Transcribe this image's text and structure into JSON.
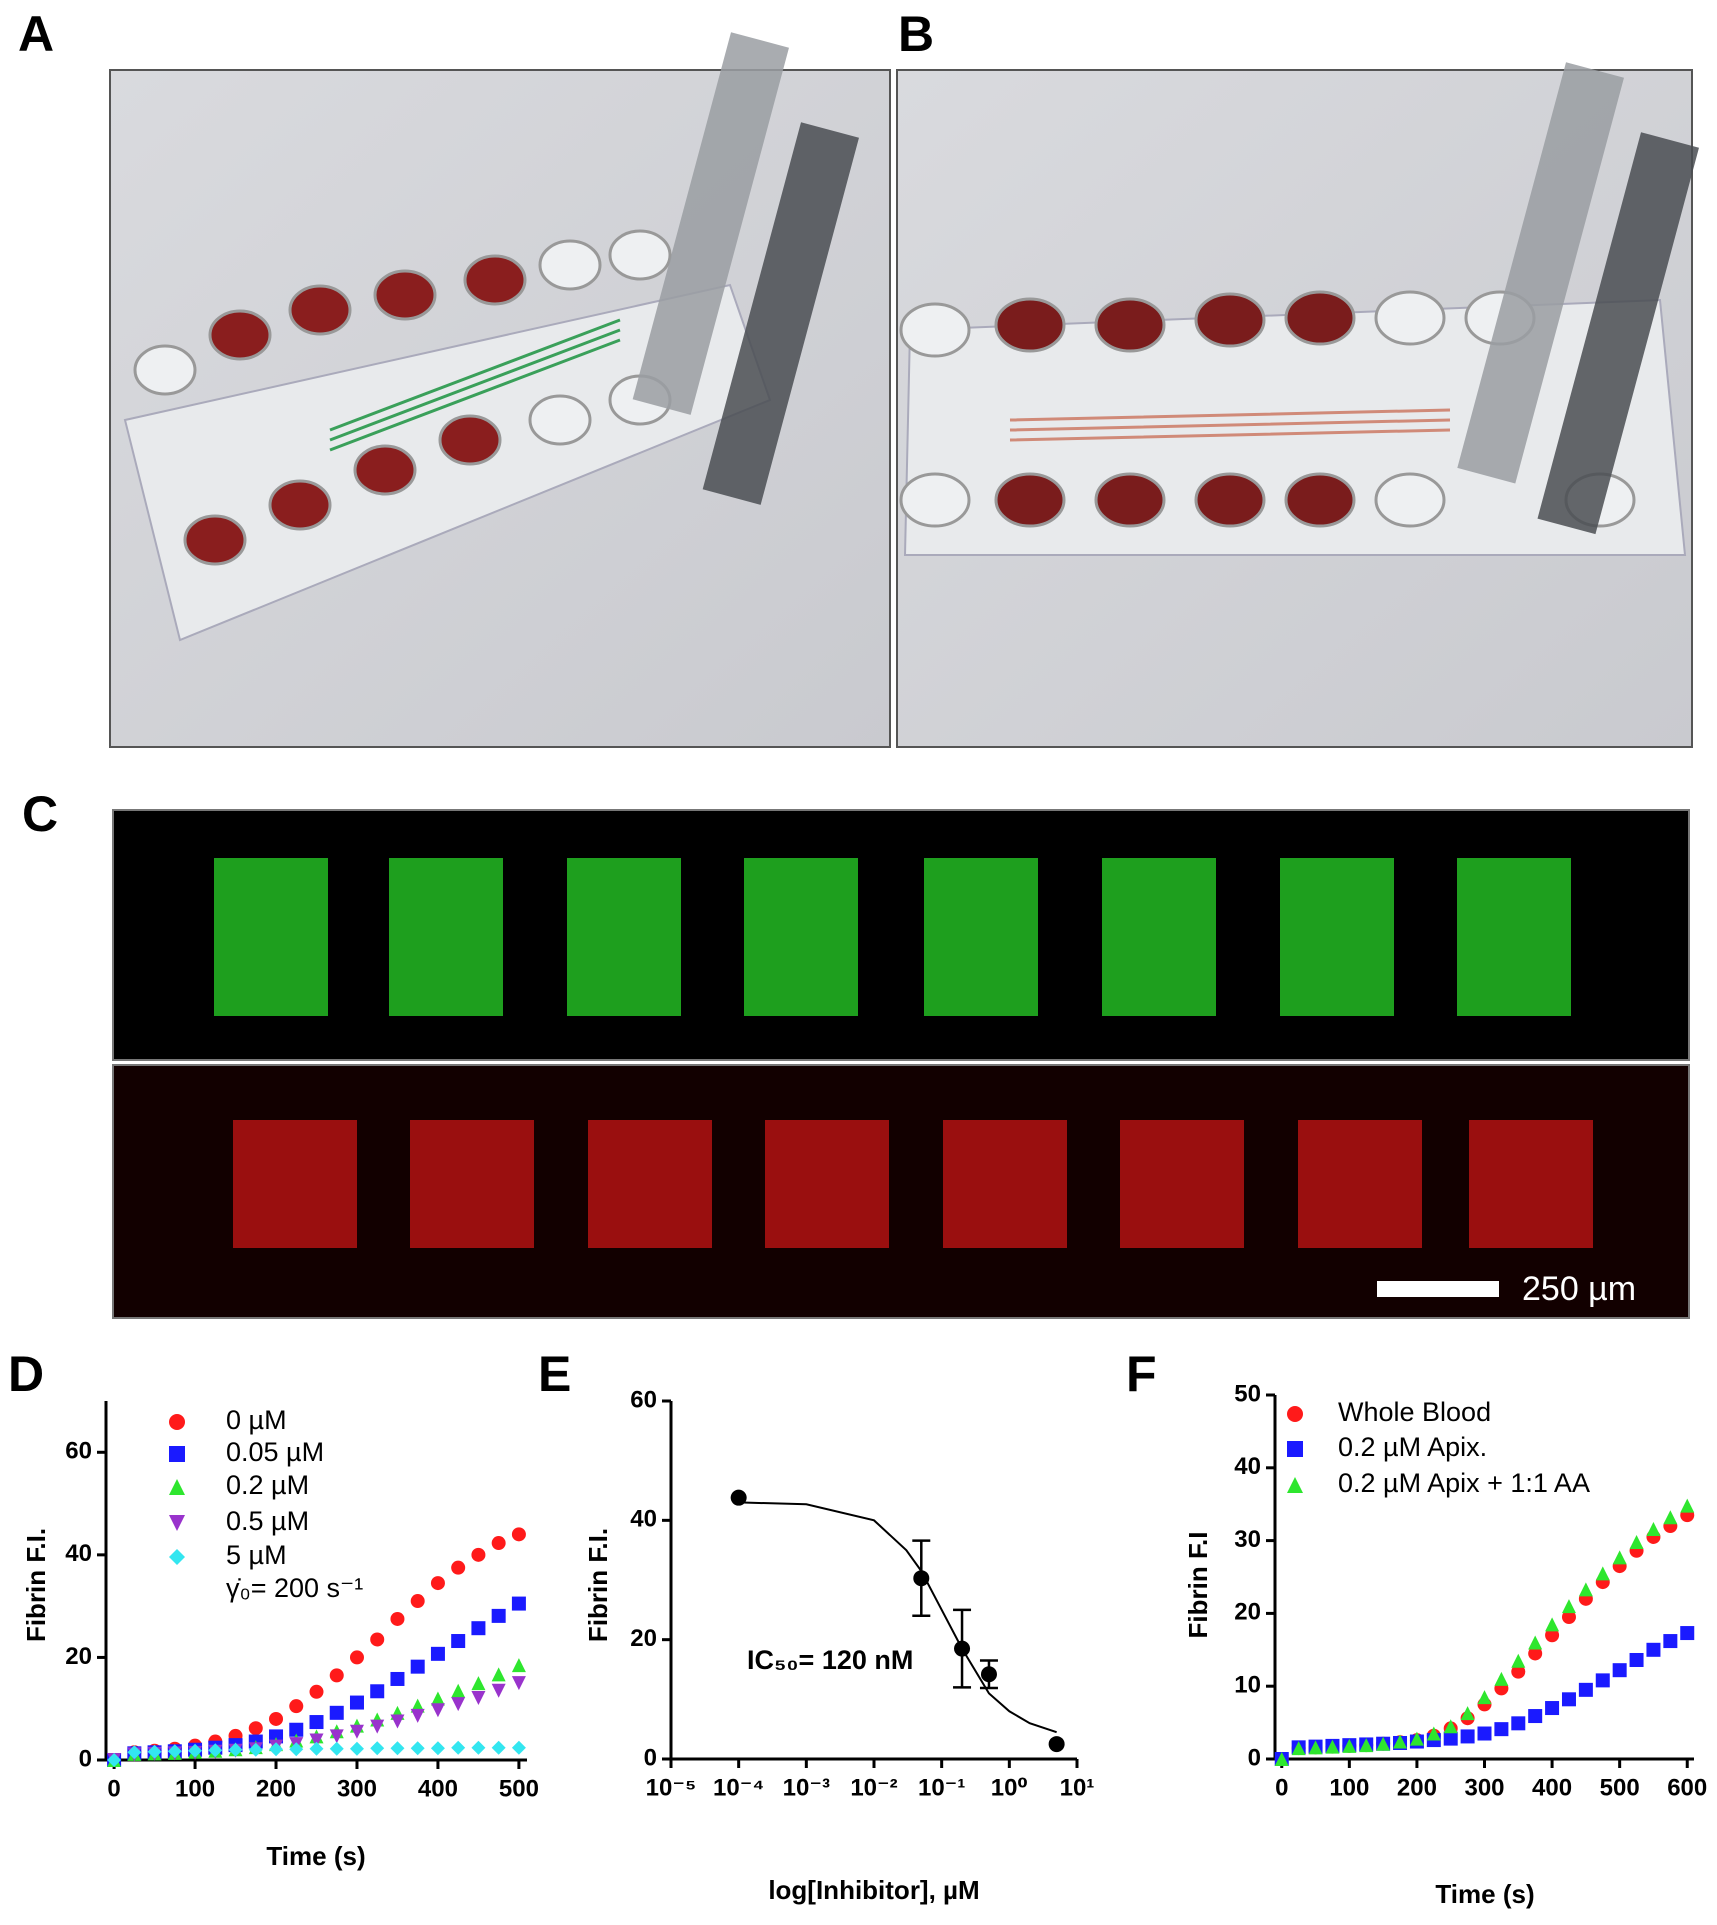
{
  "panel_labels": [
    "A",
    "B",
    "C",
    "D",
    "E",
    "F"
  ],
  "scale_bar": "250 µm",
  "chart_data": [
    {
      "type": "line",
      "xlabel": "Time (s)",
      "ylabel": "Fibrin F.I.",
      "annotation": "γ̇₀= 200 s⁻¹",
      "x": [
        0,
        25,
        50,
        75,
        100,
        125,
        150,
        175,
        200,
        225,
        250,
        275,
        300,
        325,
        350,
        375,
        400,
        425,
        450,
        475,
        500
      ],
      "series": [
        {
          "name": "0 µM",
          "color": "#ff1a1a",
          "marker": "circle",
          "values": [
            0,
            1.5,
            1.8,
            2.2,
            2.8,
            3.6,
            4.7,
            6.2,
            8,
            10.5,
            13.3,
            16.5,
            20,
            23.5,
            27.5,
            31,
            34.5,
            37.5,
            40,
            42.3,
            44
          ]
        },
        {
          "name": "0.05 µM",
          "color": "#1a1aff",
          "marker": "square",
          "values": [
            0,
            1.3,
            1.5,
            1.7,
            2,
            2.4,
            2.9,
            3.6,
            4.6,
            5.9,
            7.4,
            9.2,
            11.2,
            13.4,
            15.8,
            18.2,
            20.7,
            23.2,
            25.7,
            28.1,
            30.5
          ]
        },
        {
          "name": "0.2 µM",
          "color": "#2ee62e",
          "marker": "triangle-up",
          "values": [
            0,
            1.2,
            1.3,
            1.4,
            1.6,
            1.8,
            2.1,
            2.5,
            3.1,
            3.8,
            4.6,
            5.6,
            6.7,
            7.9,
            9.2,
            10.6,
            12,
            13.5,
            15,
            16.7,
            18.5
          ]
        },
        {
          "name": "0.5 µM",
          "color": "#9933cc",
          "marker": "triangle-down",
          "values": [
            0,
            1.1,
            1.2,
            1.3,
            1.4,
            1.6,
            1.8,
            2.1,
            2.6,
            3.1,
            3.8,
            4.6,
            5.5,
            6.5,
            7.5,
            8.6,
            9.7,
            10.9,
            12.1,
            13.5,
            15
          ]
        },
        {
          "name": "5 µM",
          "color": "#33e6f0",
          "marker": "diamond",
          "values": [
            0,
            1.5,
            1.6,
            1.7,
            1.8,
            1.9,
            2,
            2,
            2.1,
            2.1,
            2.2,
            2.2,
            2.2,
            2.3,
            2.3,
            2.3,
            2.3,
            2.4,
            2.4,
            2.4,
            2.4
          ]
        }
      ],
      "xlim": [
        -10,
        510
      ],
      "xticks": [
        0,
        100,
        200,
        300,
        400,
        500
      ],
      "ylim": [
        0,
        70
      ],
      "yticks": [
        0,
        20,
        40,
        60
      ]
    },
    {
      "type": "scatter",
      "xlabel": "log[Inhibitor], µM",
      "ylabel": "Fibrin  F.I.",
      "annotation": "IC₅₀= 120 nM",
      "log_x": true,
      "x": [
        0.0001,
        0.05,
        0.2,
        0.5,
        5
      ],
      "values": [
        43.8,
        30.3,
        18.5,
        14.2,
        2.5
      ],
      "errors": [
        null,
        6.3,
        6.5,
        2.3,
        null
      ],
      "color": "#000000",
      "curve": {
        "x": [
          0.0001,
          0.001,
          0.01,
          0.03,
          0.05,
          0.1,
          0.2,
          0.5,
          1,
          2,
          5
        ],
        "values": [
          43,
          42.7,
          40,
          35,
          31.5,
          25,
          18.5,
          11,
          8,
          6,
          4.5
        ]
      },
      "xlim": [
        1e-05,
        10
      ],
      "xticks": [
        {
          "value": 1e-05,
          "label": "10⁻⁵"
        },
        {
          "value": 0.0001,
          "label": "10⁻⁴"
        },
        {
          "value": 0.001,
          "label": "10⁻³"
        },
        {
          "value": 0.01,
          "label": "10⁻²"
        },
        {
          "value": 0.1,
          "label": "10⁻¹"
        },
        {
          "value": 1,
          "label": "10⁰"
        },
        {
          "value": 10,
          "label": "10¹"
        }
      ],
      "ylim": [
        0,
        60
      ],
      "yticks": [
        0,
        20,
        40,
        60
      ]
    },
    {
      "type": "line",
      "xlabel": "Time (s)",
      "ylabel": "Fibrin  F.I",
      "x": [
        0,
        25,
        50,
        75,
        100,
        125,
        150,
        175,
        200,
        225,
        250,
        275,
        300,
        325,
        350,
        375,
        400,
        425,
        450,
        475,
        500,
        525,
        550,
        575,
        600
      ],
      "series": [
        {
          "name": "Whole Blood",
          "color": "#ff1a1a",
          "marker": "circle",
          "values": [
            0,
            1.5,
            1.6,
            1.7,
            1.8,
            1.9,
            2.1,
            2.3,
            2.6,
            3.2,
            4.2,
            5.6,
            7.5,
            9.7,
            12,
            14.5,
            17,
            19.5,
            22,
            24.3,
            26.5,
            28.6,
            30.5,
            32,
            33.5
          ]
        },
        {
          "name": "0.2 µM Apix.",
          "color": "#1a1aff",
          "marker": "square",
          "values": [
            0,
            1.6,
            1.7,
            1.8,
            1.9,
            2,
            2.1,
            2.2,
            2.4,
            2.6,
            2.8,
            3.1,
            3.5,
            4.1,
            4.9,
            5.9,
            7,
            8.2,
            9.5,
            10.8,
            12.2,
            13.6,
            15,
            16.2,
            17.3
          ]
        },
        {
          "name": "0.2 µM Apix + 1:1 AA",
          "color": "#2ee62e",
          "marker": "triangle-up",
          "values": [
            0,
            1.5,
            1.6,
            1.7,
            1.8,
            1.9,
            2.1,
            2.4,
            2.8,
            3.5,
            4.5,
            6.3,
            8.5,
            11,
            13.5,
            16,
            18.5,
            21,
            23.3,
            25.5,
            27.7,
            29.8,
            31.6,
            33.2,
            34.8
          ]
        }
      ],
      "xlim": [
        -10,
        610
      ],
      "xticks": [
        0,
        100,
        200,
        300,
        400,
        500,
        600
      ],
      "ylim": [
        0,
        50
      ],
      "yticks": [
        0,
        10,
        20,
        30,
        40,
        50
      ]
    }
  ]
}
